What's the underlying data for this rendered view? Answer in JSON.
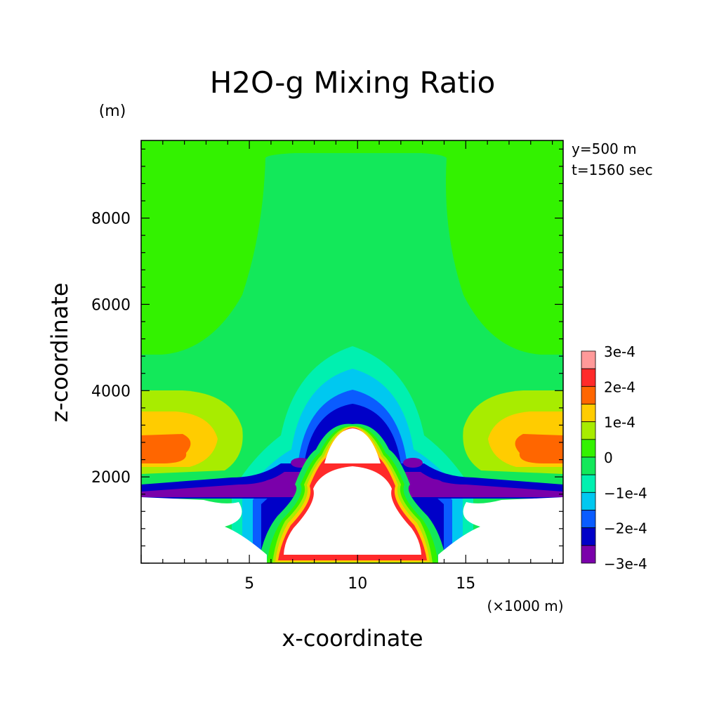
{
  "chart_data": {
    "type": "heatmap",
    "title": "H2O-g Mixing Ratio",
    "xlabel": "x-coordinate",
    "ylabel": "z-coordinate",
    "x_unit": "(×1000 m)",
    "y_unit": "(m)",
    "annotation_y": "y=500 m",
    "annotation_t": "t=1560 sec",
    "xlim": [
      0,
      19.5
    ],
    "ylim": [
      0,
      9800
    ],
    "xticks": [
      5,
      10,
      15
    ],
    "yticks": [
      2000,
      4000,
      6000,
      8000
    ],
    "colorbar": {
      "labels": [
        "3e-4",
        "2e-4",
        "1e-4",
        "0",
        "−1e-4",
        "−2e-4",
        "−3e-4"
      ],
      "levels": [
        {
          "value": 0.0003,
          "color": "#ff9999"
        },
        {
          "value": 0.00025,
          "color": "#ff2a2a"
        },
        {
          "value": 0.0002,
          "color": "#ff6600"
        },
        {
          "value": 0.00015,
          "color": "#ffcc00"
        },
        {
          "value": 0.0001,
          "color": "#a8ec00"
        },
        {
          "value": 5e-05,
          "color": "#33f200"
        },
        {
          "value": 0.0,
          "color": "#13e85a"
        },
        {
          "value": -5e-05,
          "color": "#00f0b0"
        },
        {
          "value": -0.0001,
          "color": "#00c8f0"
        },
        {
          "value": -0.00015,
          "color": "#0a5cff"
        },
        {
          "value": -0.0002,
          "color": "#0000c8"
        },
        {
          "value": -0.00025,
          "color": "#7a00aa"
        }
      ]
    },
    "field": {
      "background": "#13e85a",
      "upper_region": "#33f200",
      "undefined_regions": "#ffffff"
    }
  }
}
